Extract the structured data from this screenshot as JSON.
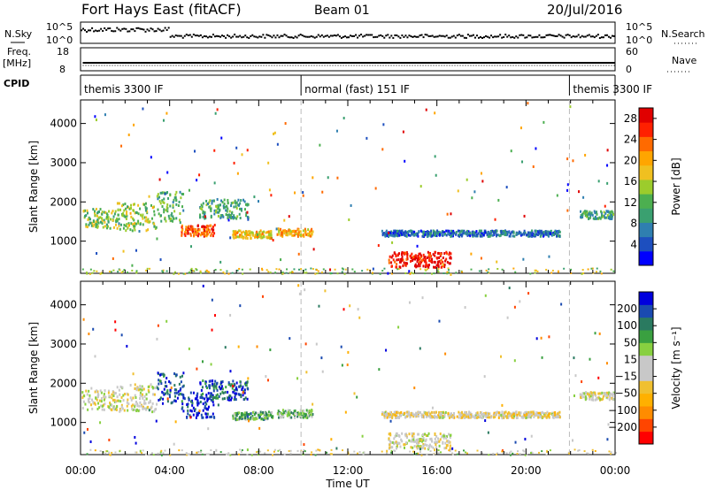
{
  "header": {
    "site": "Fort Hays East (fitACF)",
    "beam": "Beam 01",
    "date": "20/Jul/2016"
  },
  "noise_panel": {
    "left_label": "N.Sky",
    "right_label": "N.Search",
    "left_ticks": [
      "10^5",
      "10^0"
    ],
    "right_ticks": [
      "10^5",
      "10^0"
    ]
  },
  "freq_panel": {
    "left_label_top": "Freq.",
    "left_label_bottom": "[MHz]",
    "right_label": "Nave",
    "left_ticks": [
      "18",
      "8"
    ],
    "right_ticks": [
      "60",
      "0"
    ]
  },
  "cpid_panel": {
    "label": "CPID",
    "segments": [
      {
        "text": "themis 3300 IF",
        "start_hour": 0,
        "end_hour": 9.9
      },
      {
        "text": "normal (fast) 151 IF",
        "start_hour": 9.9,
        "end_hour": 21.95
      },
      {
        "text": "themis 3300 IF",
        "start_hour": 21.95,
        "end_hour": 24
      }
    ]
  },
  "chart_data": [
    {
      "type": "heatmap",
      "quantity": "power",
      "ylabel": "Slant Range [km]",
      "xlabel": "Time UT",
      "xlim_hours": [
        0,
        24
      ],
      "ylim": [
        180,
        4600
      ],
      "yticks": [
        1000,
        2000,
        3000,
        4000
      ],
      "colorbar": {
        "label": "Power [dB]",
        "range": [
          0,
          30
        ],
        "ticks": [
          "4",
          "8",
          "12",
          "16",
          "20",
          "24",
          "28"
        ],
        "colors": [
          "#0000ff",
          "#1d4fbf",
          "#2f7fb0",
          "#3aa070",
          "#4caf50",
          "#9ccc2c",
          "#f0c020",
          "#ffa500",
          "#ff6a00",
          "#ff2000",
          "#e00000"
        ]
      },
      "echo_regions": [
        {
          "t0": 0.05,
          "t1": 1.6,
          "r0": 1350,
          "r1": 1850,
          "level": 0.45
        },
        {
          "t0": 1.6,
          "t1": 3.4,
          "r0": 1300,
          "r1": 2000,
          "level": 0.5
        },
        {
          "t0": 3.4,
          "t1": 4.6,
          "r0": 1500,
          "r1": 2300,
          "level": 0.4
        },
        {
          "t0": 4.5,
          "t1": 6.0,
          "r0": 1150,
          "r1": 1450,
          "level": 0.8
        },
        {
          "t0": 5.3,
          "t1": 7.5,
          "r0": 1600,
          "r1": 2100,
          "level": 0.35
        },
        {
          "t0": 6.8,
          "t1": 8.6,
          "r0": 1100,
          "r1": 1300,
          "level": 0.6
        },
        {
          "t0": 8.8,
          "t1": 10.4,
          "r0": 1150,
          "r1": 1350,
          "level": 0.65
        },
        {
          "t0": 13.8,
          "t1": 16.6,
          "r0": 350,
          "r1": 750,
          "level": 0.92
        },
        {
          "t0": 13.5,
          "t1": 21.5,
          "r0": 1150,
          "r1": 1300,
          "level": 0.2
        },
        {
          "t0": 22.4,
          "t1": 23.9,
          "r0": 1600,
          "r1": 1800,
          "level": 0.35
        }
      ]
    },
    {
      "type": "heatmap",
      "quantity": "velocity",
      "ylabel": "Slant Range [km]",
      "xlabel": "Time UT",
      "xlim_hours": [
        0,
        24
      ],
      "ylim": [
        180,
        4600
      ],
      "yticks": [
        1000,
        2000,
        3000,
        4000
      ],
      "xticks": [
        "00:00",
        "04:00",
        "08:00",
        "12:00",
        "16:00",
        "20:00",
        "00:00"
      ],
      "colorbar": {
        "label": "Velocity [m s^-1]",
        "range": [
          -250,
          250
        ],
        "ticks": [
          "200",
          "100",
          "50",
          "15",
          "-15",
          "-50",
          "-100",
          "-200"
        ],
        "colors": [
          "#ff0000",
          "#ff4500",
          "#ff8c00",
          "#ffb000",
          "#f0c030",
          "#c8c8c8",
          "#c8c8c8",
          "#88d040",
          "#3aa040",
          "#2a7a60",
          "#1a4ab0",
          "#0000dd"
        ]
      },
      "echo_regions": [
        {
          "t0": 0.05,
          "t1": 1.6,
          "r0": 1350,
          "r1": 1850,
          "level": 0.5
        },
        {
          "t0": 1.6,
          "t1": 3.4,
          "r0": 1300,
          "r1": 2000,
          "level": 0.5
        },
        {
          "t0": 3.4,
          "t1": 4.6,
          "r0": 1500,
          "r1": 2300,
          "level": 0.85
        },
        {
          "t0": 4.5,
          "t1": 6.0,
          "r0": 1150,
          "r1": 1800,
          "level": 0.92
        },
        {
          "t0": 5.3,
          "t1": 7.5,
          "r0": 1600,
          "r1": 2100,
          "level": 0.85
        },
        {
          "t0": 6.8,
          "t1": 8.6,
          "r0": 1100,
          "r1": 1300,
          "level": 0.7
        },
        {
          "t0": 8.8,
          "t1": 10.4,
          "r0": 1150,
          "r1": 1350,
          "level": 0.65
        },
        {
          "t0": 13.8,
          "t1": 16.6,
          "r0": 350,
          "r1": 750,
          "level": 0.5
        },
        {
          "t0": 13.5,
          "t1": 21.5,
          "r0": 1150,
          "r1": 1300,
          "level": 0.45
        },
        {
          "t0": 22.4,
          "t1": 23.9,
          "r0": 1600,
          "r1": 1800,
          "level": 0.5
        }
      ]
    }
  ]
}
